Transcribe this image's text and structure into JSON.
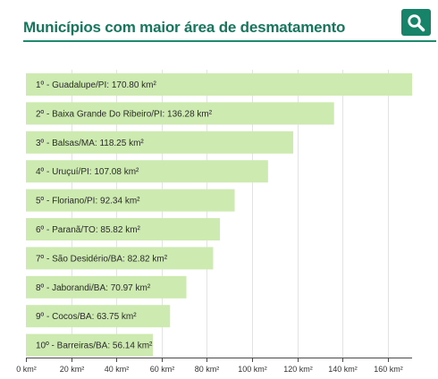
{
  "header": {
    "title": "Municípios com maior área de desmatamento"
  },
  "colors": {
    "accent": "#16765e",
    "bar": "#cdeab0",
    "grid": "#e3e3e3"
  },
  "icons": {
    "search": "search-icon"
  },
  "chart_data": {
    "type": "bar",
    "orientation": "horizontal",
    "title": "Municípios com maior área de desmatamento",
    "categories": [
      "1º - Guadalupe/PI: 170.80 km²",
      "2º - Baixa Grande Do Ribeiro/PI: 136.28 km²",
      "3º - Balsas/MA: 118.25 km²",
      "4º - Uruçuí/PI: 107.08 km²",
      "5º - Floriano/PI: 92.34 km²",
      "6º - Paranã/TO: 85.82 km²",
      "7º - São Desidério/BA: 82.82 km²",
      "8º - Jaborandi/BA: 70.97 km²",
      "9º - Cocos/BA: 63.75 km²",
      "10º - Barreiras/BA: 56.14 km²"
    ],
    "values": [
      170.8,
      136.28,
      118.25,
      107.08,
      92.34,
      85.82,
      82.82,
      70.97,
      63.75,
      56.14
    ],
    "xlim": [
      0,
      170.8
    ],
    "xticks": [
      0,
      20,
      40,
      60,
      80,
      100,
      120,
      140,
      160
    ],
    "xtick_labels": [
      "0 km²",
      "20 km²",
      "40 km²",
      "60 km²",
      "80 km²",
      "100 km²",
      "120 km²",
      "140 km²",
      "160 km²"
    ],
    "grid": "vertical",
    "legend": "none"
  }
}
